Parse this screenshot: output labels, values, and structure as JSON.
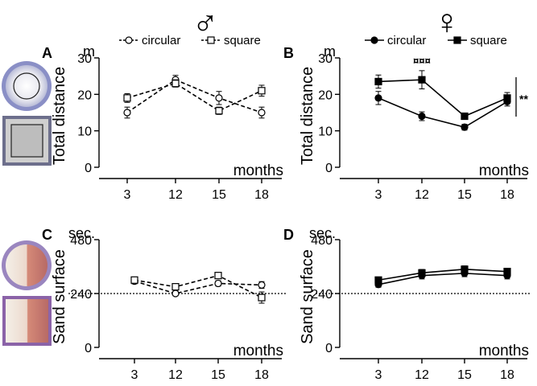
{
  "header": {
    "male_symbol": "♂",
    "female_symbol": "♀"
  },
  "colors": {
    "ink": "#000000",
    "pool_blue": "#7b82c4",
    "sand_orange": "#c8756a",
    "sand_purple": "#8b63a8",
    "floor_gray": "#8e8e8e"
  },
  "chart_data": [
    {
      "id": "A",
      "type": "line",
      "panel_label": "A",
      "sex": "male",
      "ylabel": "Total distance",
      "yunit": "m",
      "xlabel": "months",
      "ylim": [
        0,
        30
      ],
      "yticks": [
        0,
        10,
        20,
        30
      ],
      "categories": [
        "3",
        "12",
        "15",
        "18"
      ],
      "marker_fill": "open",
      "line_style": "dashed",
      "legend": "top",
      "series": [
        {
          "name": "circular",
          "marker": "circle",
          "values": [
            15,
            24,
            19,
            15
          ],
          "errors": [
            1.5,
            1.2,
            1.8,
            1.5
          ]
        },
        {
          "name": "square",
          "marker": "square",
          "values": [
            19,
            23,
            15.5,
            21
          ],
          "errors": [
            1.2,
            1.0,
            1.0,
            1.5
          ]
        }
      ]
    },
    {
      "id": "B",
      "type": "line",
      "panel_label": "B",
      "sex": "female",
      "ylabel": "Total distance",
      "yunit": "m",
      "xlabel": "months",
      "ylim": [
        0,
        30
      ],
      "yticks": [
        0,
        10,
        20,
        30
      ],
      "categories": [
        "3",
        "12",
        "15",
        "18"
      ],
      "marker_fill": "filled",
      "line_style": "solid",
      "legend": "top",
      "annotations": [
        {
          "text": "¤¤¤",
          "at": "12"
        },
        {
          "text": "**",
          "at": "right"
        }
      ],
      "series": [
        {
          "name": "circular",
          "marker": "circle",
          "values": [
            19,
            14,
            11,
            18
          ],
          "errors": [
            1.8,
            1.2,
            0.8,
            1.2
          ]
        },
        {
          "name": "square",
          "marker": "square",
          "values": [
            23.5,
            24,
            14,
            19
          ],
          "errors": [
            1.8,
            2.5,
            0.8,
            1.5
          ]
        }
      ]
    },
    {
      "id": "C",
      "type": "line",
      "panel_label": "C",
      "sex": "male",
      "ylabel": "Sand surface",
      "yunit": "sec.",
      "xlabel": "months",
      "ylim": [
        0,
        480
      ],
      "yticks": [
        0,
        240,
        480
      ],
      "reference_line": 240,
      "categories": [
        "3",
        "12",
        "15",
        "18"
      ],
      "marker_fill": "open",
      "line_style": "dashed",
      "series": [
        {
          "name": "circular",
          "marker": "circle",
          "values": [
            295,
            240,
            285,
            278
          ],
          "errors": [
            12,
            10,
            12,
            15
          ]
        },
        {
          "name": "square",
          "marker": "square",
          "values": [
            300,
            270,
            320,
            222
          ],
          "errors": [
            12,
            12,
            12,
            25
          ]
        }
      ]
    },
    {
      "id": "D",
      "type": "line",
      "panel_label": "D",
      "sex": "female",
      "ylabel": "Sand surface",
      "yunit": "sec.",
      "xlabel": "months",
      "ylim": [
        0,
        480
      ],
      "yticks": [
        0,
        240,
        480
      ],
      "reference_line": 240,
      "categories": [
        "3",
        "12",
        "15",
        "18"
      ],
      "marker_fill": "filled",
      "line_style": "solid",
      "series": [
        {
          "name": "circular",
          "marker": "circle",
          "values": [
            280,
            320,
            330,
            320
          ],
          "errors": [
            12,
            15,
            15,
            15
          ]
        },
        {
          "name": "square",
          "marker": "square",
          "values": [
            300,
            332,
            348,
            338
          ],
          "errors": [
            12,
            15,
            15,
            12
          ]
        }
      ]
    }
  ]
}
